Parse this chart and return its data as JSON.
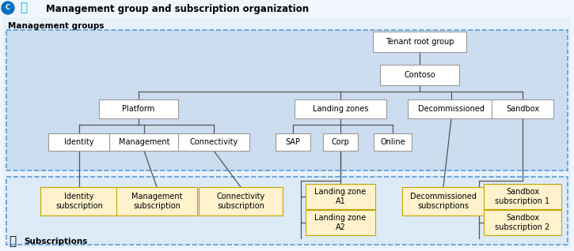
{
  "title": "Management group and subscription organization",
  "section_mg": "Management groups",
  "section_sub": "Subscriptions",
  "bg_color": "#f0f6fc",
  "outer_bg": "#e8f1fb",
  "inner_bg_mg": "#ccddf0",
  "inner_bg_sub": "#ddeaf7",
  "box_mg_fill": "#ffffff",
  "box_mg_edge": "#999999",
  "box_sub_fill": "#fff2cc",
  "box_sub_edge": "#c8a400",
  "line_color": "#555555",
  "title_color": "#000000",
  "label_color": "#000000",
  "title_fontsize": 8.5,
  "label_fontsize": 7,
  "section_fontsize": 7.5,
  "fig_w": 7.25,
  "fig_h": 3.18,
  "dpi": 100
}
